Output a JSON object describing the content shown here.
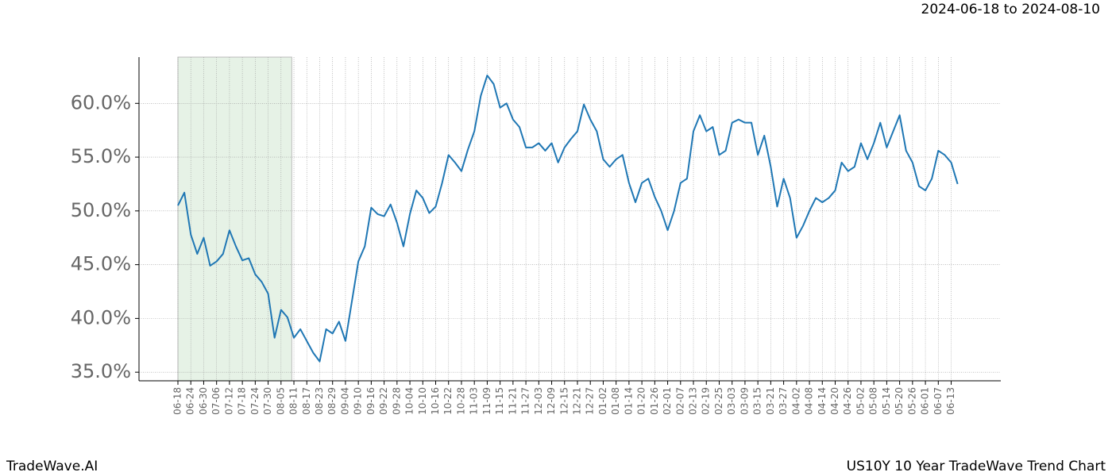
{
  "chart_data": {
    "type": "line",
    "title": "US10Y 10 Year TradeWave Trend Chart",
    "subtitle": "2024-06-18 to 2024-08-10",
    "brand": "TradeWave.AI",
    "color": "#1f77b4",
    "shade": {
      "from": 0,
      "to": 17.67,
      "color": "#e6f2e6"
    },
    "grid": true,
    "xlim": [
      -6.04,
      127.7
    ],
    "ylim": [
      34.2,
      64.3
    ],
    "yticks": [
      {
        "value": 35,
        "label": "35.0%"
      },
      {
        "value": 40,
        "label": "40.0%"
      },
      {
        "value": 45,
        "label": "45.0%"
      },
      {
        "value": 50,
        "label": "50.0%"
      },
      {
        "value": 55,
        "label": "55.0%"
      },
      {
        "value": 60,
        "label": "60.0%"
      }
    ],
    "categories": [
      "06-18",
      null,
      "06-24",
      null,
      "06-30",
      null,
      "07-06",
      null,
      "07-12",
      null,
      "07-18",
      null,
      "07-24",
      null,
      "07-30",
      null,
      "08-05",
      null,
      "08-11",
      null,
      "08-17",
      null,
      "08-23",
      null,
      "08-29",
      null,
      "09-04",
      null,
      "09-10",
      null,
      "09-16",
      null,
      "09-22",
      null,
      "09-28",
      null,
      "10-04",
      null,
      "10-10",
      null,
      "10-16",
      null,
      "10-22",
      null,
      "10-28",
      null,
      "11-03",
      null,
      "11-09",
      null,
      "11-15",
      null,
      "11-21",
      null,
      "11-27",
      null,
      "12-03",
      null,
      "12-09",
      null,
      "12-15",
      null,
      "12-21",
      null,
      "12-27",
      null,
      "01-02",
      null,
      "01-08",
      null,
      "01-14",
      null,
      "01-20",
      null,
      "01-26",
      null,
      "02-01",
      null,
      "02-07",
      null,
      "02-13",
      null,
      "02-19",
      null,
      "02-25",
      null,
      "03-03",
      null,
      "03-09",
      null,
      "03-15",
      null,
      "03-21",
      null,
      "03-27",
      null,
      "04-02",
      null,
      "04-08",
      null,
      "04-14",
      null,
      "04-20",
      null,
      "04-26",
      null,
      "05-02",
      null,
      "05-08",
      null,
      "05-14",
      null,
      "05-20",
      null,
      "05-26",
      null,
      "06-01",
      null,
      "06-07",
      null,
      "06-13",
      null
    ],
    "values": [
      50.5,
      51.7,
      47.8,
      46.0,
      47.5,
      44.9,
      45.3,
      46.0,
      48.2,
      46.7,
      45.4,
      45.6,
      44.1,
      43.4,
      42.3,
      38.2,
      40.8,
      40.1,
      38.2,
      39.0,
      37.9,
      36.8,
      36.0,
      39.0,
      38.6,
      39.7,
      37.9,
      41.6,
      45.3,
      46.7,
      50.3,
      49.7,
      49.5,
      50.6,
      48.9,
      46.7,
      49.7,
      51.9,
      51.2,
      49.8,
      50.4,
      52.6,
      55.2,
      54.5,
      53.7,
      55.7,
      57.4,
      60.7,
      62.6,
      61.8,
      59.6,
      60.0,
      58.5,
      57.8,
      55.9,
      55.9,
      56.3,
      55.6,
      56.3,
      54.5,
      55.9,
      56.7,
      57.4,
      59.9,
      58.5,
      57.4,
      54.8,
      54.1,
      54.8,
      55.2,
      52.6,
      50.8,
      52.6,
      53.0,
      51.3,
      50.0,
      48.2,
      50.0,
      52.6,
      53.0,
      57.4,
      58.9,
      57.4,
      57.8,
      55.2,
      55.6,
      58.2,
      58.5,
      58.2,
      58.2,
      55.2,
      57.0,
      54.1,
      50.4,
      53.0,
      51.2,
      47.5,
      48.6,
      50.0,
      51.2,
      50.8,
      51.2,
      51.9,
      54.5,
      53.7,
      54.1,
      56.3,
      54.8,
      56.3,
      58.2,
      55.9,
      57.4,
      58.9,
      55.6,
      54.5,
      52.3,
      51.9,
      53.0,
      55.6,
      55.2,
      54.5,
      52.5
    ]
  }
}
